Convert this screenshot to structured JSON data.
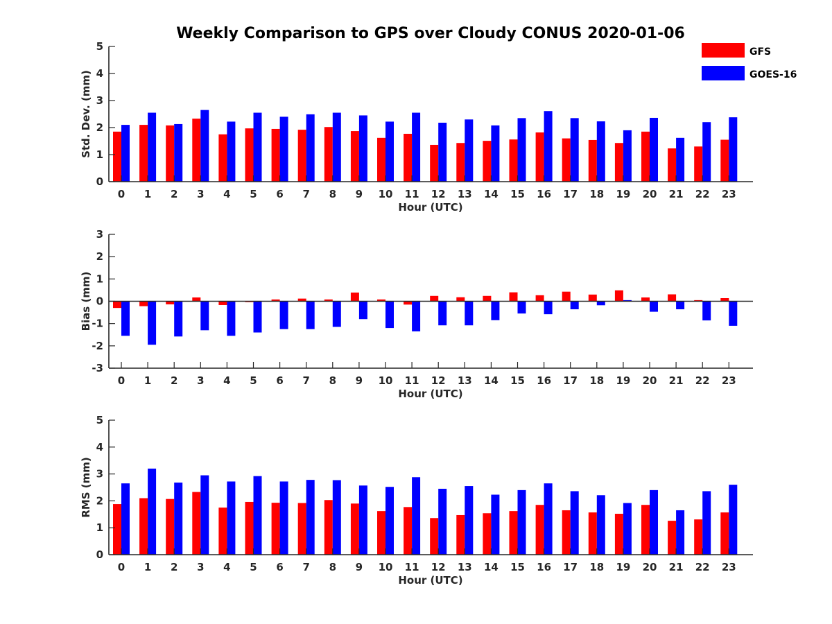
{
  "title": "Weekly Comparison to GPS over Cloudy CONUS 2020-01-06",
  "legend": {
    "placement": "top-right",
    "entries": [
      {
        "label": "GFS",
        "color": "#ff0000"
      },
      {
        "label": "GOES-16",
        "color": "#0000ff"
      }
    ]
  },
  "chart_data": [
    {
      "type": "bar",
      "xlabel": "Hour (UTC)",
      "ylabel": "Std. Dev. (mm)",
      "ylim": [
        0,
        5
      ],
      "yticks": [
        0,
        1,
        2,
        3,
        4,
        5
      ],
      "categories": [
        "0",
        "1",
        "2",
        "3",
        "4",
        "5",
        "6",
        "7",
        "8",
        "9",
        "10",
        "11",
        "12",
        "13",
        "14",
        "15",
        "16",
        "17",
        "18",
        "19",
        "20",
        "21",
        "22",
        "23"
      ],
      "series": [
        {
          "name": "GFS",
          "color": "#ff0000",
          "values": [
            1.85,
            2.1,
            2.08,
            2.33,
            1.75,
            1.97,
            1.95,
            1.92,
            2.02,
            1.87,
            1.62,
            1.77,
            1.36,
            1.43,
            1.51,
            1.56,
            1.82,
            1.6,
            1.54,
            1.43,
            1.85,
            1.23,
            1.3,
            1.55
          ]
        },
        {
          "name": "GOES-16",
          "color": "#0000ff",
          "values": [
            2.1,
            2.55,
            2.13,
            2.65,
            2.22,
            2.55,
            2.4,
            2.49,
            2.55,
            2.45,
            2.22,
            2.55,
            2.18,
            2.3,
            2.08,
            2.35,
            2.61,
            2.35,
            2.23,
            1.9,
            2.36,
            1.62,
            2.2,
            2.38
          ]
        }
      ],
      "grid": false
    },
    {
      "type": "bar",
      "xlabel": "Hour (UTC)",
      "ylabel": "Bias (mm)",
      "ylim": [
        -3,
        3
      ],
      "yticks": [
        -3,
        -2,
        -1,
        0,
        1,
        2,
        3
      ],
      "categories": [
        "0",
        "1",
        "2",
        "3",
        "4",
        "5",
        "6",
        "7",
        "8",
        "9",
        "10",
        "11",
        "12",
        "13",
        "14",
        "15",
        "16",
        "17",
        "18",
        "19",
        "20",
        "21",
        "22",
        "23"
      ],
      "series": [
        {
          "name": "GFS",
          "color": "#ff0000",
          "values": [
            -0.3,
            -0.22,
            -0.14,
            0.17,
            -0.17,
            -0.04,
            0.08,
            0.12,
            0.08,
            0.39,
            0.08,
            -0.15,
            0.24,
            0.18,
            0.24,
            0.4,
            0.27,
            0.43,
            0.3,
            0.49,
            0.17,
            0.31,
            0.05,
            0.14
          ]
        },
        {
          "name": "GOES-16",
          "color": "#0000ff",
          "values": [
            -1.55,
            -1.95,
            -1.58,
            -1.3,
            -1.55,
            -1.4,
            -1.25,
            -1.25,
            -1.15,
            -0.8,
            -1.2,
            -1.35,
            -1.08,
            -1.08,
            -0.85,
            -0.55,
            -0.58,
            -0.36,
            -0.18,
            0.05,
            -0.47,
            -0.36,
            -0.86,
            -1.1
          ]
        }
      ],
      "grid": false
    },
    {
      "type": "bar",
      "xlabel": "Hour (UTC)",
      "ylabel": "RMS (mm)",
      "ylim": [
        0,
        5
      ],
      "yticks": [
        0,
        1,
        2,
        3,
        4,
        5
      ],
      "categories": [
        "0",
        "1",
        "2",
        "3",
        "4",
        "5",
        "6",
        "7",
        "8",
        "9",
        "10",
        "11",
        "12",
        "13",
        "14",
        "15",
        "16",
        "17",
        "18",
        "19",
        "20",
        "21",
        "22",
        "23"
      ],
      "series": [
        {
          "name": "GFS",
          "color": "#ff0000",
          "values": [
            1.88,
            2.1,
            2.07,
            2.33,
            1.75,
            1.96,
            1.93,
            1.92,
            2.03,
            1.9,
            1.62,
            1.77,
            1.36,
            1.47,
            1.54,
            1.62,
            1.85,
            1.65,
            1.57,
            1.52,
            1.85,
            1.26,
            1.31,
            1.57
          ]
        },
        {
          "name": "GOES-16",
          "color": "#0000ff",
          "values": [
            2.65,
            3.2,
            2.68,
            2.95,
            2.72,
            2.92,
            2.72,
            2.78,
            2.77,
            2.57,
            2.52,
            2.88,
            2.45,
            2.55,
            2.23,
            2.4,
            2.65,
            2.36,
            2.21,
            1.92,
            2.4,
            1.65,
            2.36,
            2.6
          ]
        }
      ],
      "grid": false
    }
  ]
}
